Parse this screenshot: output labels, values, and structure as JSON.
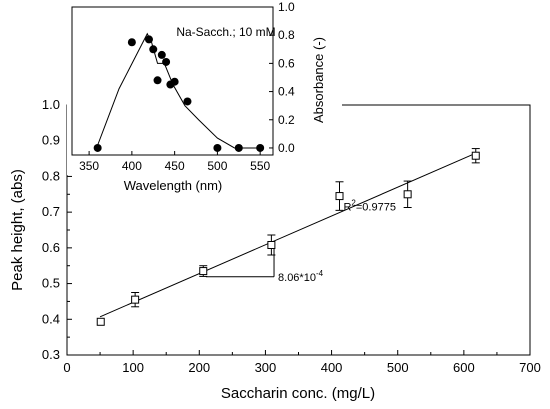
{
  "chart_data": [
    {
      "id": "main",
      "type": "scatter",
      "xlabel": "Saccharin conc. (mg/L)",
      "ylabel": "Peak height, (abs)",
      "xlim": [
        0,
        700
      ],
      "ylim": [
        0.3,
        1.0
      ],
      "xticks": [
        0,
        100,
        200,
        300,
        400,
        500,
        600,
        700
      ],
      "xtick_labels": [
        "0",
        "100",
        "200",
        "300",
        "400",
        "500",
        "600",
        "700"
      ],
      "yticks": [
        0.3,
        0.4,
        0.5,
        0.6,
        0.7,
        0.8,
        0.9,
        1.0
      ],
      "ytick_labels": [
        "0.3",
        "0.4",
        "0.5",
        "0.6",
        "0.7",
        "0.8",
        "0.9",
        "1.0"
      ],
      "grid": false,
      "marker": "open-square",
      "series": [
        {
          "points": [
            {
              "x": 51,
              "y": 0.393,
              "err": 0.0
            },
            {
              "x": 103,
              "y": 0.455,
              "err": 0.02
            },
            {
              "x": 206,
              "y": 0.535,
              "err": 0.015
            },
            {
              "x": 309,
              "y": 0.608,
              "err": 0.028
            },
            {
              "x": 412,
              "y": 0.745,
              "err": 0.04
            },
            {
              "x": 515,
              "y": 0.75,
              "err": 0.037
            },
            {
              "x": 618,
              "y": 0.858,
              "err": 0.02
            }
          ]
        }
      ],
      "fit_line": {
        "x": [
          50,
          618
        ],
        "y": [
          0.407,
          0.865
        ]
      },
      "annotations": {
        "r2_prefix": "R",
        "r2_sup": "2",
        "r2_suffix": "=0.9775",
        "slope_prefix": "8.06*10",
        "slope_sup": "-4"
      },
      "slope_triangle": {
        "x1": 210,
        "x2": 313,
        "y1": 0.519,
        "y2": 0.602
      }
    },
    {
      "id": "inset",
      "type": "line",
      "title": "Na-Sacch.; 10 mM",
      "xlabel": "Wavelength (nm)",
      "ylabel": "Absorbance (-)",
      "xlim": [
        330,
        565
      ],
      "ylim": [
        -0.05,
        1.0
      ],
      "xticks": [
        350,
        400,
        450,
        500,
        550
      ],
      "xtick_labels": [
        "350",
        "400",
        "450",
        "500",
        "550"
      ],
      "yticks": [
        0.0,
        0.2,
        0.4,
        0.6,
        0.8,
        1.0
      ],
      "ytick_labels": [
        "0.0",
        "0.2",
        "0.4",
        "0.6",
        "0.8",
        "1.0"
      ],
      "yaxis_side": "right",
      "points_x": [
        360,
        400,
        420,
        425,
        430,
        435,
        440,
        445,
        450,
        465,
        500,
        525,
        550
      ],
      "points_y": [
        0.0,
        0.75,
        0.77,
        0.7,
        0.48,
        0.66,
        0.61,
        0.45,
        0.47,
        0.33,
        0.0,
        0.0,
        0.0
      ],
      "line_x": [
        360,
        385,
        418,
        423,
        430,
        438,
        448,
        462,
        478,
        500,
        520,
        550
      ],
      "line_y": [
        0.02,
        0.42,
        0.81,
        0.75,
        0.6,
        0.6,
        0.45,
        0.3,
        0.2,
        0.07,
        0.0,
        0.0
      ]
    }
  ]
}
